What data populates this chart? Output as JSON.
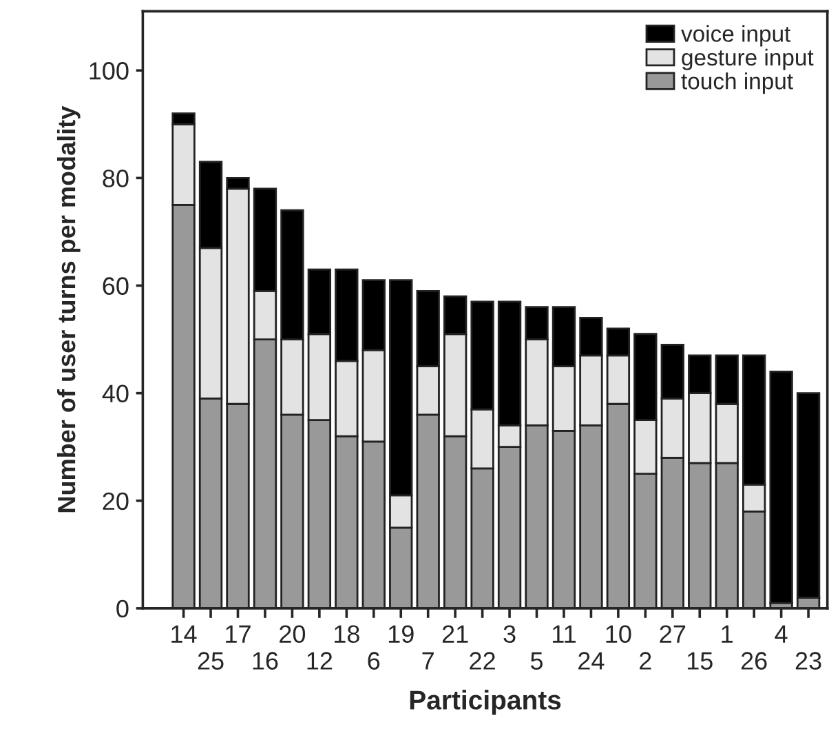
{
  "chart_data": {
    "type": "bar",
    "stacked": true,
    "xlabel": "Participants",
    "ylabel": "Number of user turns per modality",
    "categories": [
      "14",
      "25",
      "17",
      "16",
      "20",
      "12",
      "18",
      "6",
      "19",
      "7",
      "21",
      "22",
      "3",
      "5",
      "11",
      "24",
      "10",
      "2",
      "27",
      "15",
      "1",
      "26",
      "4",
      "23"
    ],
    "series": [
      {
        "name": "touch input",
        "color": "#999999",
        "values": [
          75,
          39,
          38,
          50,
          36,
          35,
          32,
          31,
          15,
          36,
          32,
          26,
          30,
          34,
          33,
          34,
          38,
          25,
          28,
          27,
          27,
          18,
          1,
          2
        ]
      },
      {
        "name": "gesture input",
        "color": "#e3e3e3",
        "values": [
          15,
          28,
          40,
          9,
          14,
          16,
          14,
          17,
          6,
          9,
          19,
          11,
          4,
          16,
          12,
          13,
          9,
          10,
          11,
          13,
          11,
          5,
          0,
          0
        ]
      },
      {
        "name": "voice input",
        "color": "#000000",
        "values": [
          2,
          16,
          2,
          19,
          24,
          12,
          17,
          13,
          40,
          14,
          7,
          20,
          23,
          6,
          11,
          7,
          5,
          16,
          10,
          7,
          9,
          24,
          43,
          38
        ]
      }
    ],
    "ylim": [
      0,
      111
    ],
    "yticks": [
      0,
      20,
      40,
      60,
      80,
      100
    ],
    "legend": "top right"
  }
}
